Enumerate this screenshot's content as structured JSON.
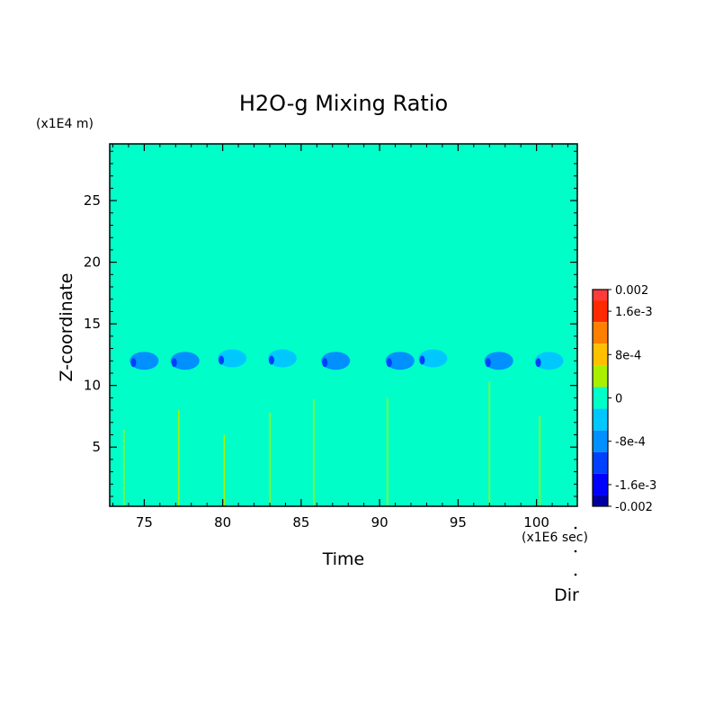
{
  "chart_data": {
    "type": "heatmap",
    "title": "H2O-g Mixing Ratio",
    "xlabel": "Time",
    "ylabel": "Z-coordinate",
    "x_unit": "(x1E6 sec)",
    "y_unit": "(x1E4 m)",
    "xlim": [
      72.8,
      102.6
    ],
    "ylim": [
      0.2,
      29.6
    ],
    "x_ticks": [
      75,
      80,
      85,
      90,
      95,
      100
    ],
    "y_ticks": [
      5,
      10,
      15,
      20,
      25
    ],
    "background_value": 0,
    "colorbar": {
      "range": [
        -0.002,
        0.002
      ],
      "labels": [
        "0.002",
        "1.6e-3",
        "8e-4",
        "0",
        "-8e-4",
        "-1.6e-3",
        "-0.002"
      ],
      "label_values": [
        0.002,
        0.0016,
        0.0008,
        0,
        -0.0008,
        -0.0016,
        -0.002
      ],
      "levels": [
        {
          "from": 0.0018,
          "to": 0.002,
          "color": "#ff3b3b"
        },
        {
          "from": 0.0014,
          "to": 0.0018,
          "color": "#ff2a00"
        },
        {
          "from": 0.001,
          "to": 0.0014,
          "color": "#ff7f00"
        },
        {
          "from": 0.0006,
          "to": 0.001,
          "color": "#ffc000"
        },
        {
          "from": 0.0002,
          "to": 0.0006,
          "color": "#a8f000"
        },
        {
          "from": -0.0002,
          "to": 0.0002,
          "color": "#00ffc8"
        },
        {
          "from": -0.0006,
          "to": -0.0002,
          "color": "#00c8ff"
        },
        {
          "from": -0.001,
          "to": -0.0006,
          "color": "#0090ff"
        },
        {
          "from": -0.0014,
          "to": -0.001,
          "color": "#0040ff"
        },
        {
          "from": -0.0018,
          "to": -0.0014,
          "color": "#0000ff"
        },
        {
          "from": -0.002,
          "to": -0.0018,
          "color": "#0000a0"
        }
      ]
    },
    "negative_blobs": [
      {
        "x": 75.0,
        "y": 12.0,
        "value": -0.0007
      },
      {
        "x": 77.6,
        "y": 12.0,
        "value": -0.0007
      },
      {
        "x": 80.6,
        "y": 12.2,
        "value": -0.0006
      },
      {
        "x": 83.8,
        "y": 12.2,
        "value": -0.0006
      },
      {
        "x": 87.2,
        "y": 12.0,
        "value": -0.0008
      },
      {
        "x": 91.3,
        "y": 12.0,
        "value": -0.0008
      },
      {
        "x": 93.4,
        "y": 12.2,
        "value": -0.0006
      },
      {
        "x": 97.6,
        "y": 12.0,
        "value": -0.0007
      },
      {
        "x": 100.8,
        "y": 12.0,
        "value": -0.0006
      }
    ],
    "positive_spikes": [
      {
        "x": 73.7,
        "ytop": 6.4,
        "value": 0.0004
      },
      {
        "x": 77.2,
        "ytop": 8.0,
        "value": 0.0004
      },
      {
        "x": 80.1,
        "ytop": 6.0,
        "value": 0.0004
      },
      {
        "x": 83.0,
        "ytop": 7.8,
        "value": 0.0004
      },
      {
        "x": 85.8,
        "ytop": 8.9,
        "value": 0.0004
      },
      {
        "x": 90.5,
        "ytop": 9.0,
        "value": 0.0004
      },
      {
        "x": 97.0,
        "ytop": 10.3,
        "value": 0.0004
      },
      {
        "x": 100.2,
        "ytop": 7.5,
        "value": 0.0004
      }
    ],
    "footer_label": "Dir"
  }
}
